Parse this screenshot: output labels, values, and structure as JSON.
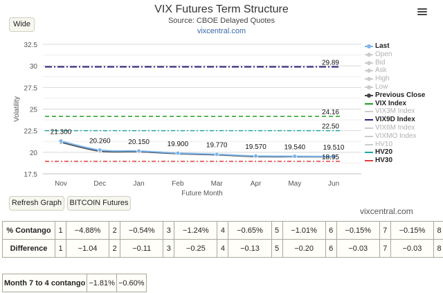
{
  "header": {
    "title": "VIX Futures Term Structure",
    "subtitle": "Source: CBOE Delayed Quotes",
    "site": "vixcentral.com"
  },
  "buttons": {
    "wide": "Wide",
    "refresh": "Refresh Graph",
    "bitcoin": "BITCOIN Futures"
  },
  "credit": "vixcentral.com",
  "chart_data": {
    "type": "line",
    "ylabel": "Volatility",
    "xlabel": "Future Month",
    "categories": [
      "Nov",
      "Dec",
      "Jan",
      "Feb",
      "Mar",
      "Apr",
      "May",
      "Jun"
    ],
    "ylim": [
      17.5,
      32.5
    ],
    "yticks": [
      "17.5",
      "20",
      "22.5",
      "25",
      "27.5",
      "30",
      "32.5"
    ],
    "grid": true,
    "legend_position": "right",
    "series": [
      {
        "name": "Last",
        "color": "#7cb5ec",
        "values": [
          21.3,
          20.26,
          20.15,
          19.9,
          19.77,
          19.57,
          19.54,
          19.51
        ],
        "labels": [
          "21.300",
          "20.260",
          "20.150",
          "19.900",
          "19.770",
          "19.570",
          "19.540",
          "19.510"
        ]
      },
      {
        "name": "Previous Close",
        "color": "#434348",
        "values": [
          21.15,
          20.12,
          20.05,
          19.82,
          19.69,
          19.49,
          19.47,
          19.46
        ]
      },
      {
        "name": "VIX Index",
        "color": "#1e9e1e",
        "value": 24.16,
        "label": "24.16",
        "dash": "6,4"
      },
      {
        "name": "VIX9D Index",
        "color": "#2e1f7a",
        "value": 29.89,
        "label": "29.89",
        "dash": "10,3,2,3"
      },
      {
        "name": "HV20",
        "color": "#1aa5a5",
        "value": 22.5,
        "label": "22.50",
        "dash": "6,3,2,3"
      },
      {
        "name": "HV30",
        "color": "#e33b3b",
        "value": 18.95,
        "label": "18.95",
        "dash": "6,3,2,3"
      }
    ],
    "legend": [
      {
        "name": "Last",
        "active": true,
        "color": "#7cb5ec",
        "marker": true
      },
      {
        "name": "Open",
        "active": false,
        "color": "#cccccc",
        "marker": true
      },
      {
        "name": "Bid",
        "active": false,
        "color": "#cccccc",
        "marker": true
      },
      {
        "name": "Ask",
        "active": false,
        "color": "#cccccc",
        "marker": true
      },
      {
        "name": "High",
        "active": false,
        "color": "#cccccc",
        "marker": true
      },
      {
        "name": "Low",
        "active": false,
        "color": "#cccccc",
        "marker": true
      },
      {
        "name": "Previous Close",
        "active": true,
        "color": "#434348",
        "marker": true
      },
      {
        "name": "VIX Index",
        "active": true,
        "color": "#1e9e1e",
        "marker": false
      },
      {
        "name": "VIX3M Index",
        "active": false,
        "color": "#cccccc",
        "marker": false
      },
      {
        "name": "VIX9D Index",
        "active": true,
        "color": "#2e1f7a",
        "marker": false
      },
      {
        "name": "VIX6M Index",
        "active": false,
        "color": "#cccccc",
        "marker": false
      },
      {
        "name": "VIXMO Index",
        "active": false,
        "color": "#cccccc",
        "marker": false
      },
      {
        "name": "HV10",
        "active": false,
        "color": "#cccccc",
        "marker": false
      },
      {
        "name": "HV20",
        "active": true,
        "color": "#1aa5a5",
        "marker": false
      },
      {
        "name": "HV30",
        "active": true,
        "color": "#e33b3b",
        "marker": false
      }
    ]
  },
  "stats": {
    "contango": {
      "label": "% Contango",
      "cells": [
        {
          "n": "1",
          "v": "−4.88%"
        },
        {
          "n": "2",
          "v": "−0.54%"
        },
        {
          "n": "3",
          "v": "−1.24%"
        },
        {
          "n": "4",
          "v": "−0.65%"
        },
        {
          "n": "5",
          "v": "−1.01%"
        },
        {
          "n": "6",
          "v": "−0.15%"
        },
        {
          "n": "7",
          "v": "−0.15%"
        },
        {
          "n": "8",
          "v": ""
        }
      ]
    },
    "difference": {
      "label": "Difference",
      "cells": [
        {
          "n": "1",
          "v": "−1.04"
        },
        {
          "n": "2",
          "v": "−0.11"
        },
        {
          "n": "3",
          "v": "−0.25"
        },
        {
          "n": "4",
          "v": "−0.13"
        },
        {
          "n": "5",
          "v": "−0.20"
        },
        {
          "n": "6",
          "v": "−0.03"
        },
        {
          "n": "7",
          "v": "−0.03"
        },
        {
          "n": "8",
          "v": ""
        }
      ]
    },
    "month7to4": {
      "label": "Month 7 to 4 contango",
      "v1": "−1.81%",
      "v2": "−0.60%"
    }
  }
}
